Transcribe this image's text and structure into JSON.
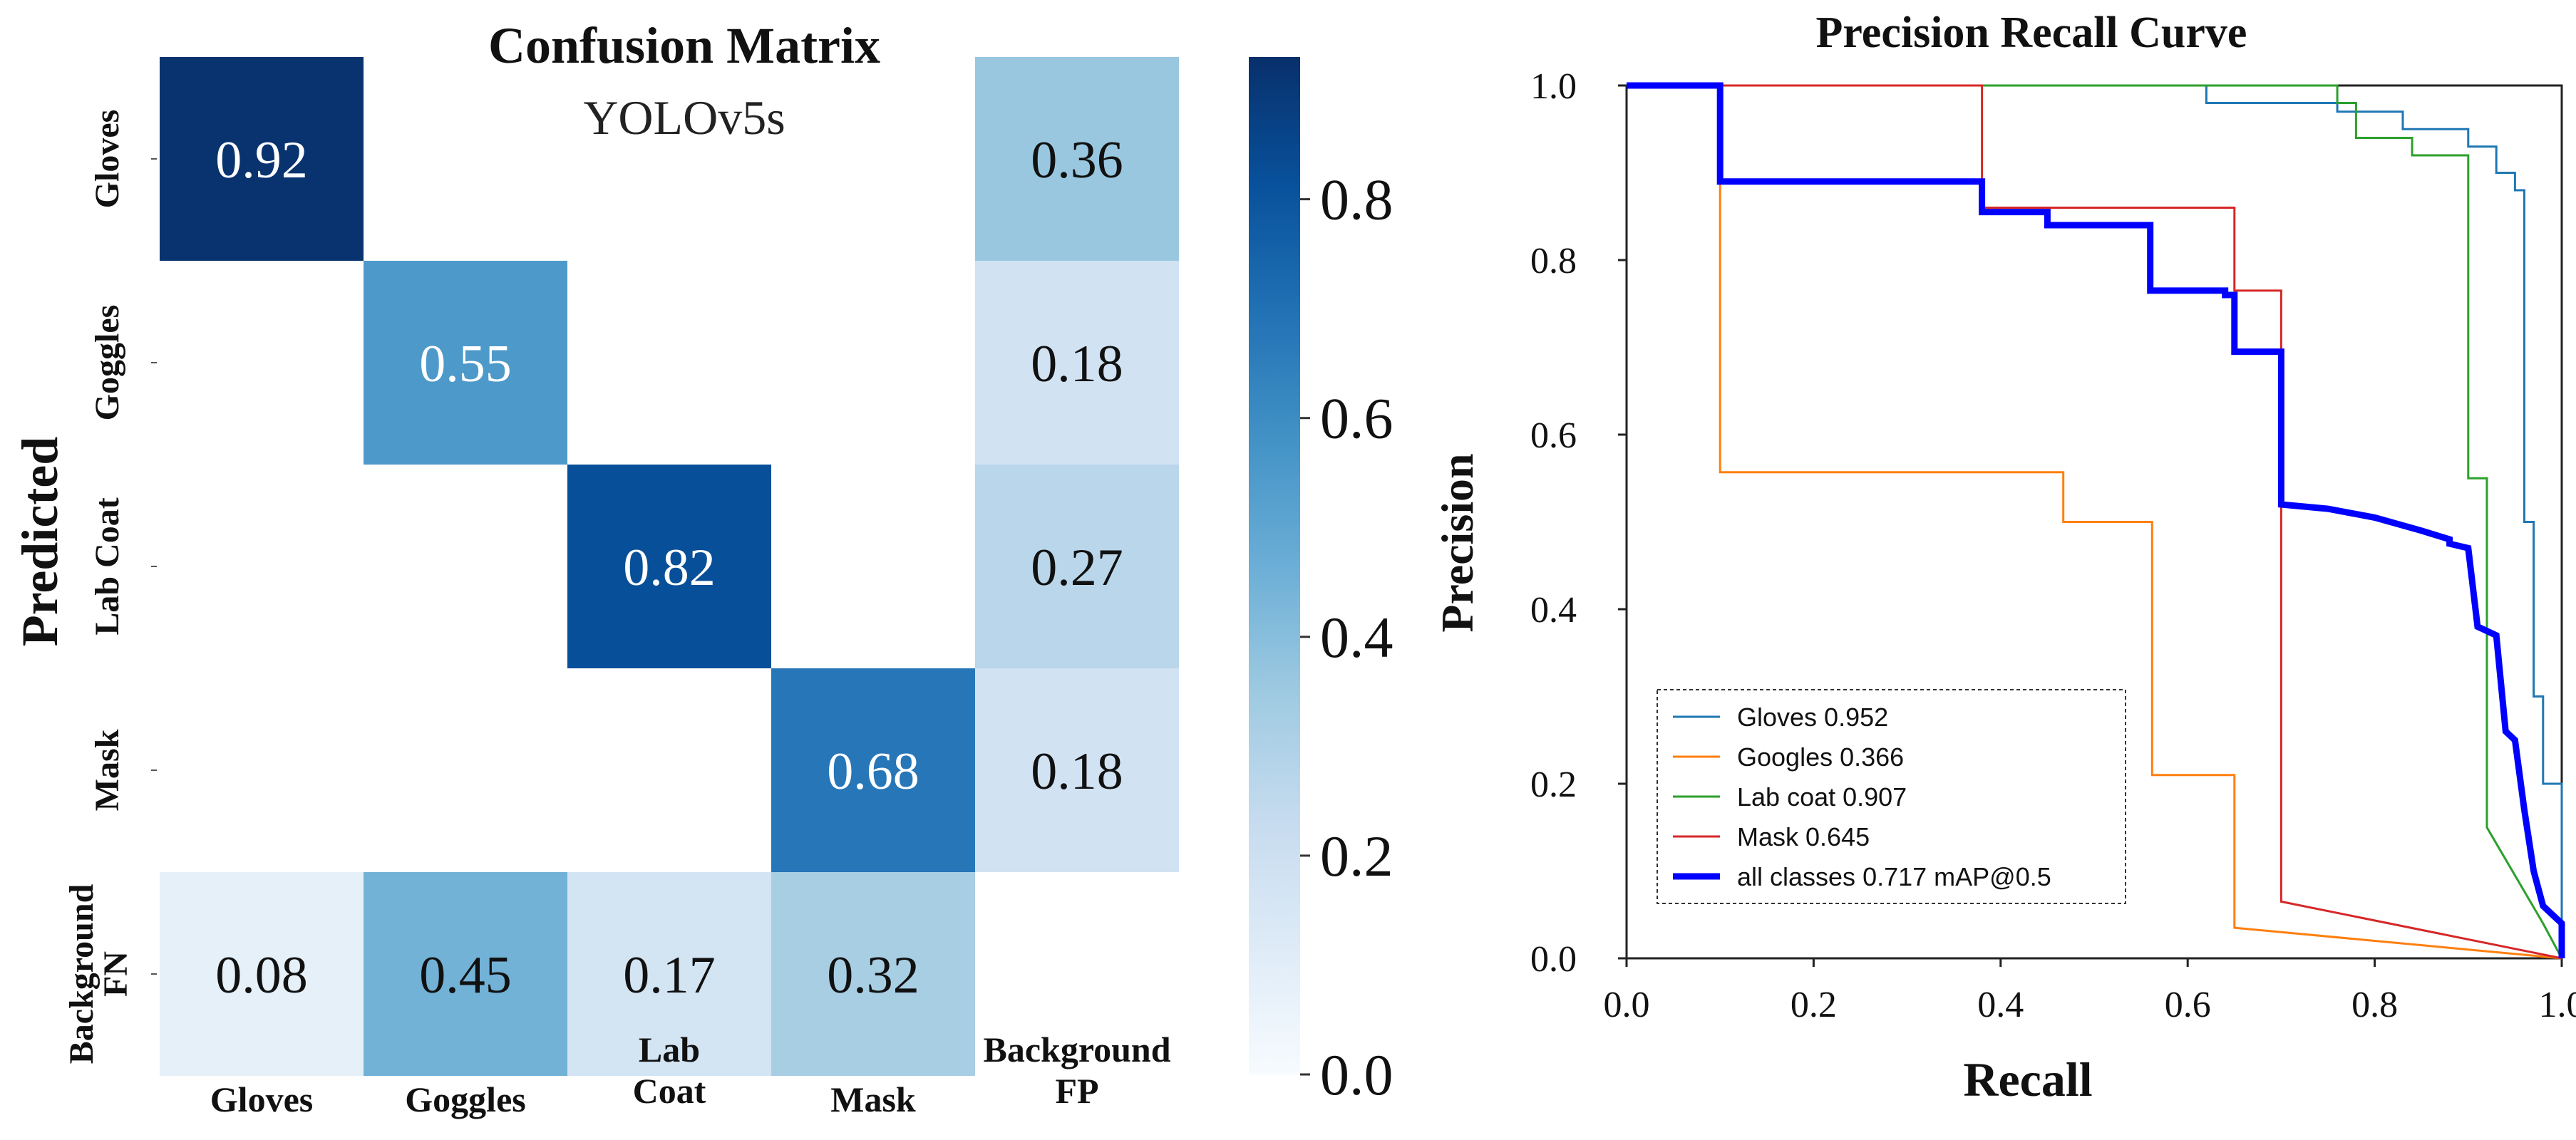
{
  "chart_data": [
    {
      "type": "heatmap",
      "title": "Confusion Matrix",
      "subtitle": "YOLOv5s",
      "ylabel": "Predicted",
      "row_labels": [
        "Gloves",
        "Goggles",
        "Lab Coat",
        "Mask",
        "Background FN"
      ],
      "col_labels": [
        "Gloves",
        "Goggles",
        "Lab Coat",
        "Mask",
        "Background FP"
      ],
      "values": [
        [
          0.92,
          null,
          null,
          null,
          0.36
        ],
        [
          null,
          0.55,
          null,
          null,
          0.18
        ],
        [
          null,
          null,
          0.82,
          null,
          0.27
        ],
        [
          null,
          null,
          null,
          0.68,
          0.18
        ],
        [
          0.08,
          0.45,
          0.17,
          0.32,
          null
        ]
      ],
      "value_labels": [
        [
          "0.92",
          "",
          "",
          "",
          "0.36"
        ],
        [
          "",
          "0.55",
          "",
          "",
          "0.18"
        ],
        [
          "",
          "",
          "0.82",
          "",
          "0.27"
        ],
        [
          "",
          "",
          "",
          "0.68",
          "0.18"
        ],
        [
          "0.08",
          "0.45",
          "0.17",
          "0.32",
          ""
        ]
      ],
      "colorbar": {
        "range": [
          0.0,
          0.93
        ],
        "ticks": [
          0.0,
          0.2,
          0.4,
          0.6,
          0.8
        ],
        "tick_labels": [
          "0.0",
          "0.2",
          "0.4",
          "0.6",
          "0.8"
        ],
        "colormap": [
          "#f7fbff",
          "#deebf7",
          "#c6dbef",
          "#9ecae1",
          "#6baed6",
          "#4292c6",
          "#2171b5",
          "#08519c",
          "#08306b"
        ]
      }
    },
    {
      "type": "line",
      "title": "Precision Recall Curve",
      "xlabel": "Recall",
      "ylabel": "Precision",
      "xlim": [
        0.0,
        1.0
      ],
      "ylim": [
        0.0,
        1.0
      ],
      "xticks": [
        0.0,
        0.2,
        0.4,
        0.6,
        0.8,
        1.0
      ],
      "xtick_labels": [
        "0.0",
        "0.2",
        "0.4",
        "0.6",
        "0.8",
        "1.0"
      ],
      "yticks": [
        0.0,
        0.2,
        0.4,
        0.6,
        0.8,
        1.0
      ],
      "ytick_labels": [
        "0.0",
        "0.2",
        "0.4",
        "0.6",
        "0.8",
        "1.0"
      ],
      "legend_position": "lower-left",
      "series": [
        {
          "name": "Gloves 0.952",
          "color": "#1f77b4",
          "width": "thin",
          "points": [
            [
              0,
              1
            ],
            [
              0.62,
              1
            ],
            [
              0.62,
              0.98
            ],
            [
              0.76,
              0.98
            ],
            [
              0.76,
              0.97
            ],
            [
              0.83,
              0.97
            ],
            [
              0.83,
              0.95
            ],
            [
              0.9,
              0.95
            ],
            [
              0.9,
              0.93
            ],
            [
              0.93,
              0.93
            ],
            [
              0.93,
              0.9
            ],
            [
              0.95,
              0.9
            ],
            [
              0.95,
              0.88
            ],
            [
              0.96,
              0.88
            ],
            [
              0.96,
              0.5
            ],
            [
              0.97,
              0.5
            ],
            [
              0.97,
              0.3
            ],
            [
              0.98,
              0.3
            ],
            [
              0.98,
              0.2
            ],
            [
              1.0,
              0.2
            ],
            [
              1.0,
              0
            ]
          ]
        },
        {
          "name": "Googles 0.366",
          "color": "#ff7f0e",
          "width": "thin",
          "points": [
            [
              0,
              1
            ],
            [
              0.1,
              1
            ],
            [
              0.1,
              0.557
            ],
            [
              0.467,
              0.557
            ],
            [
              0.467,
              0.5
            ],
            [
              0.562,
              0.5
            ],
            [
              0.562,
              0.21
            ],
            [
              0.65,
              0.21
            ],
            [
              0.65,
              0.035
            ],
            [
              1.0,
              0
            ]
          ]
        },
        {
          "name": "Lab coat 0.907",
          "color": "#2ca02c",
          "width": "thin",
          "points": [
            [
              0,
              1
            ],
            [
              0.76,
              1
            ],
            [
              0.76,
              0.98
            ],
            [
              0.78,
              0.98
            ],
            [
              0.78,
              0.94
            ],
            [
              0.84,
              0.94
            ],
            [
              0.84,
              0.92
            ],
            [
              0.9,
              0.92
            ],
            [
              0.9,
              0.55
            ],
            [
              0.92,
              0.55
            ],
            [
              0.92,
              0.15
            ],
            [
              0.98,
              0.04
            ],
            [
              1.0,
              0
            ]
          ]
        },
        {
          "name": "Mask 0.645",
          "color": "#d62728",
          "width": "thin",
          "points": [
            [
              0,
              1
            ],
            [
              0.38,
              1
            ],
            [
              0.38,
              0.86
            ],
            [
              0.65,
              0.86
            ],
            [
              0.65,
              0.765
            ],
            [
              0.7,
              0.765
            ],
            [
              0.7,
              0.065
            ],
            [
              1.0,
              0
            ]
          ]
        },
        {
          "name": "all classes 0.717 mAP@0.5",
          "color": "#0000ff",
          "width": "thick",
          "points": [
            [
              0,
              1
            ],
            [
              0.1,
              1
            ],
            [
              0.1,
              0.89
            ],
            [
              0.38,
              0.89
            ],
            [
              0.38,
              0.855
            ],
            [
              0.45,
              0.855
            ],
            [
              0.45,
              0.84
            ],
            [
              0.56,
              0.84
            ],
            [
              0.56,
              0.765
            ],
            [
              0.64,
              0.765
            ],
            [
              0.64,
              0.76
            ],
            [
              0.65,
              0.76
            ],
            [
              0.65,
              0.695
            ],
            [
              0.7,
              0.695
            ],
            [
              0.7,
              0.52
            ],
            [
              0.75,
              0.515
            ],
            [
              0.8,
              0.505
            ],
            [
              0.85,
              0.49
            ],
            [
              0.88,
              0.48
            ],
            [
              0.88,
              0.475
            ],
            [
              0.9,
              0.47
            ],
            [
              0.91,
              0.38
            ],
            [
              0.93,
              0.37
            ],
            [
              0.94,
              0.26
            ],
            [
              0.95,
              0.25
            ],
            [
              0.96,
              0.17
            ],
            [
              0.97,
              0.1
            ],
            [
              0.98,
              0.06
            ],
            [
              0.99,
              0.05
            ],
            [
              1.0,
              0.04
            ],
            [
              1.0,
              0
            ]
          ]
        }
      ]
    }
  ]
}
